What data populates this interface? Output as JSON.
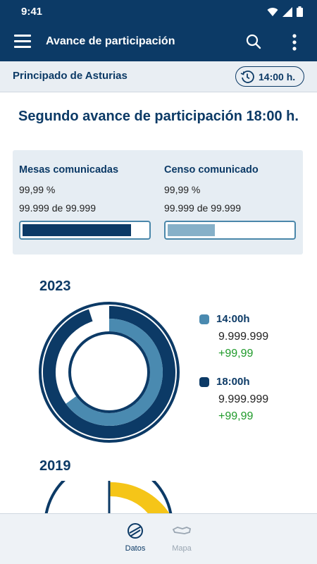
{
  "status": {
    "time": "9:41"
  },
  "appbar": {
    "title": "Avance de participación",
    "menu_icon": "hamburger-icon",
    "search_icon": "search-icon",
    "more_icon": "more-vert-icon"
  },
  "region": {
    "name": "Principado de Asturias",
    "time_label": "14:00 h."
  },
  "heading": "Segundo avance de participación 18:00 h.",
  "summary": {
    "mesas": {
      "label": "Mesas comunicadas",
      "percent": "99,99 %",
      "count": "99.999 de 99.999",
      "fill": 0.87
    },
    "censo": {
      "label": "Censo comunicado",
      "percent": "99,99 %",
      "count": "99.999 de 99.999",
      "fill": 0.38
    }
  },
  "charts": [
    {
      "year": "2023",
      "legend": [
        {
          "label": "14:00h",
          "value": "9.999.999",
          "change": "+99,99",
          "color": "#4a8ab0"
        },
        {
          "label": "18:00h",
          "value": "9.999.999",
          "change": "+99,99",
          "color": "#0c3a66"
        }
      ],
      "outer_fraction": 0.95,
      "inner_fraction": 0.65
    },
    {
      "year": "2019"
    }
  ],
  "colors": {
    "primary": "#0c3a66",
    "accent": "#4a8ab0",
    "positive": "#1f9a2a",
    "highlight": "#f5c518"
  },
  "nav": [
    {
      "label": "Datos",
      "icon": "ballot-icon",
      "active": true
    },
    {
      "label": "Mapa",
      "icon": "map-icon",
      "active": false
    }
  ]
}
